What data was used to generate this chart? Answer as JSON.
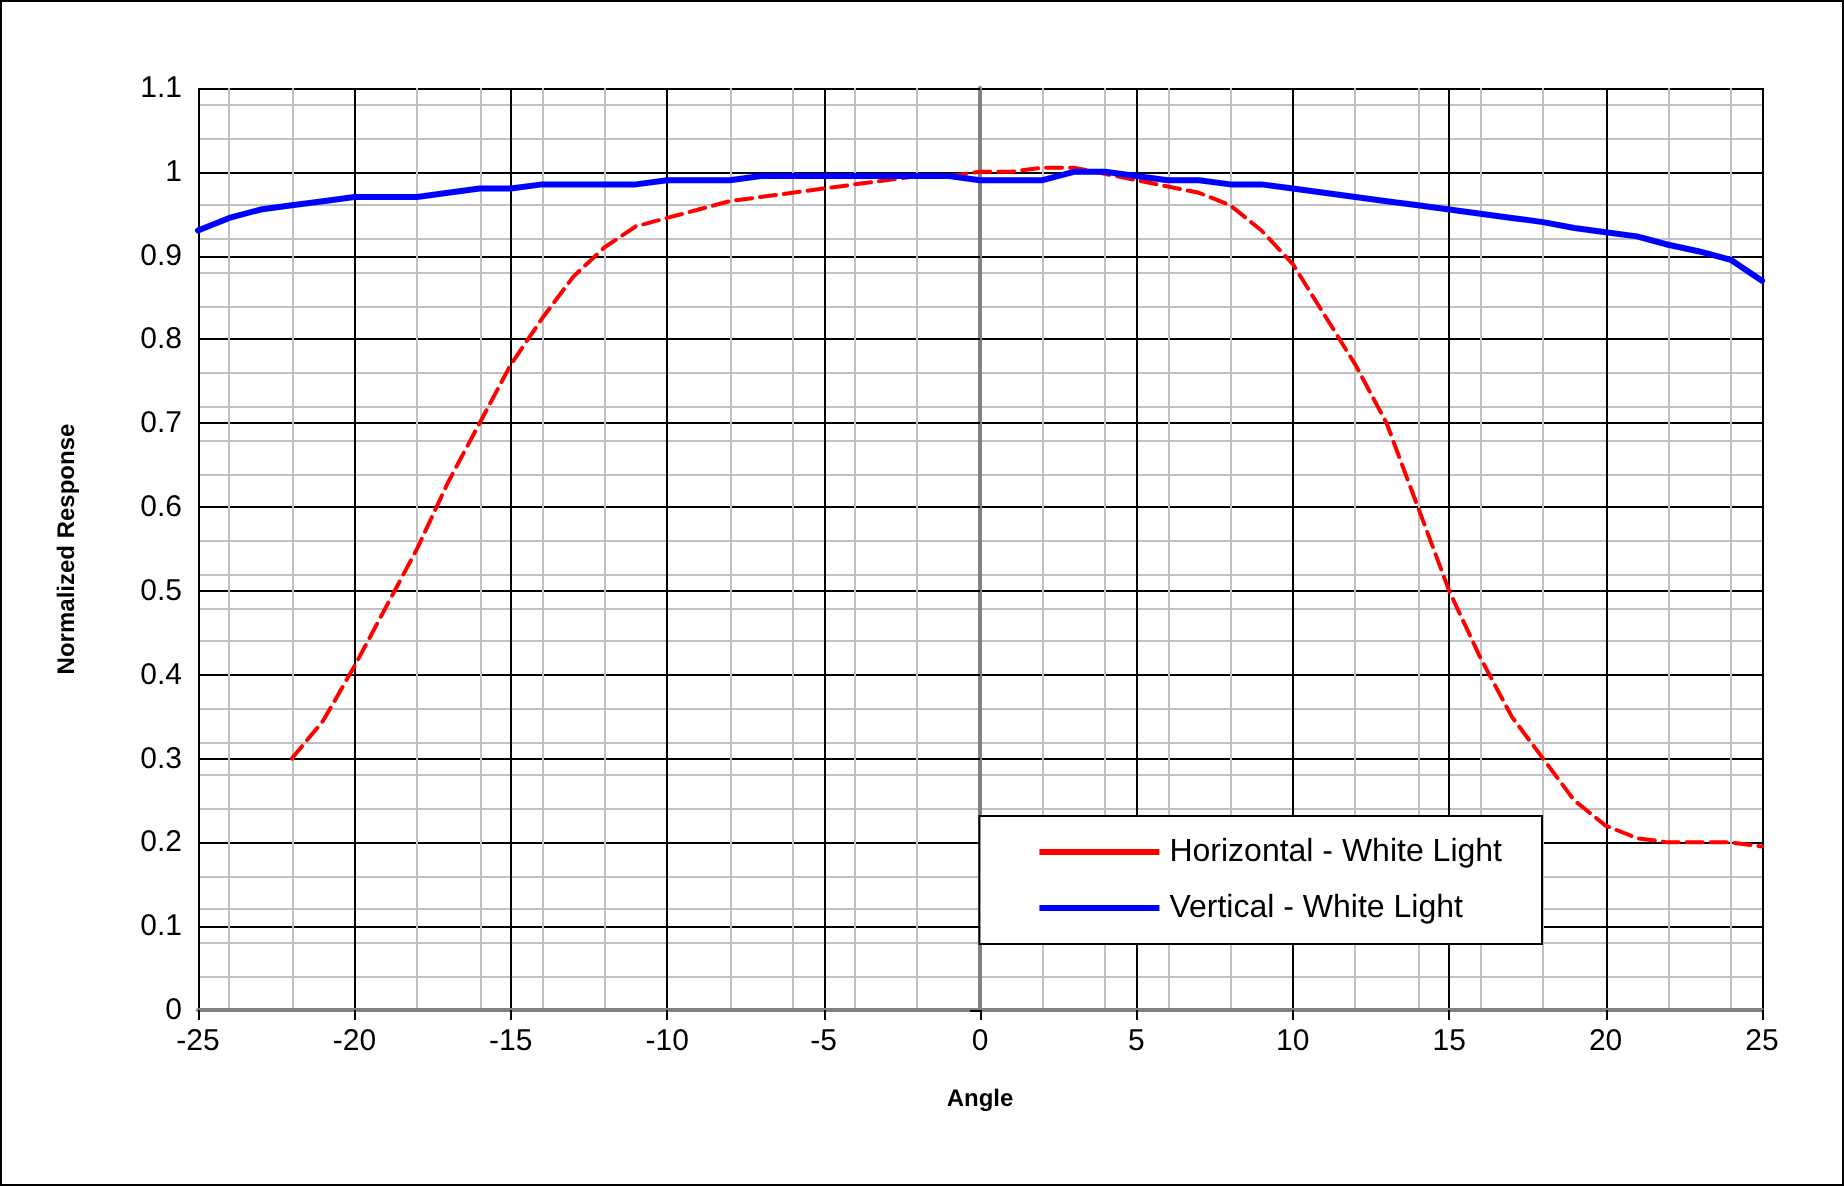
{
  "chart_data": {
    "type": "line",
    "xlabel": "Angle",
    "ylabel": "Normalized Response",
    "xlim": [
      -25,
      25
    ],
    "xticks": [
      -25,
      -20,
      -15,
      -10,
      -5,
      0,
      5,
      10,
      15,
      20,
      25
    ],
    "ylim": [
      0,
      1.1
    ],
    "yticks": [
      0,
      0.1,
      0.2,
      0.3,
      0.4,
      0.5,
      0.6,
      0.7,
      0.8,
      0.9,
      1,
      1.1
    ],
    "grid": true,
    "legend": "bottom right",
    "marker": "none",
    "series": [
      {
        "name": "Horizontal - White Light",
        "color": "#ff0000",
        "line_style": "dashed",
        "x": [
          -22,
          -21,
          -20,
          -19,
          -18,
          -17,
          -16,
          -15,
          -14,
          -13,
          -12,
          -11,
          -10,
          -9,
          -8,
          -7,
          -6,
          -5,
          -4,
          -3,
          -2,
          -1,
          0,
          1,
          2,
          3,
          4,
          5,
          6,
          7,
          8,
          9,
          10,
          11,
          12,
          13,
          14,
          15,
          16,
          17,
          18,
          19,
          20,
          21,
          22,
          23,
          24,
          25
        ],
        "values": [
          0.3,
          0.345,
          0.41,
          0.48,
          0.55,
          0.63,
          0.7,
          0.77,
          0.825,
          0.875,
          0.91,
          0.935,
          0.945,
          0.955,
          0.965,
          0.97,
          0.975,
          0.98,
          0.985,
          0.99,
          0.995,
          0.995,
          1.0,
          1.0,
          1.005,
          1.005,
          null,
          null,
          null,
          0.975,
          0.96,
          0.93,
          0.89,
          0.83,
          0.77,
          0.7,
          0.6,
          0.5,
          0.42,
          0.35,
          0.3,
          0.25,
          0.22,
          0.205,
          0.2,
          0.2,
          0.2,
          0.195
        ]
      },
      {
        "name": "Vertical - White Light",
        "color": "#0000ff",
        "line_style": "solid",
        "x": [
          -25,
          -24,
          -23,
          -22,
          -21,
          -20,
          -19,
          -18,
          -17,
          -16,
          -15,
          -14,
          -13,
          -12,
          -11,
          -10,
          -9,
          -8,
          -7,
          -6,
          -5,
          -4,
          -3,
          -2,
          -1,
          0,
          1,
          2,
          3,
          4,
          5,
          6,
          7,
          8,
          9,
          10,
          11,
          12,
          13,
          14,
          15,
          16,
          17,
          18,
          19,
          20,
          21,
          22,
          23,
          24,
          25
        ],
        "values": [
          0.93,
          0.945,
          0.955,
          0.96,
          0.965,
          0.97,
          0.97,
          0.97,
          0.975,
          0.98,
          0.98,
          0.985,
          0.985,
          0.985,
          0.985,
          0.99,
          0.99,
          0.99,
          0.995,
          0.995,
          0.995,
          0.995,
          0.995,
          0.995,
          0.995,
          0.99,
          0.99,
          0.99,
          1.0,
          1.0,
          0.995,
          0.99,
          0.99,
          0.985,
          0.985,
          0.98,
          0.975,
          0.97,
          0.965,
          0.96,
          0.955,
          0.95,
          0.945,
          0.94,
          0.933,
          0.928,
          0.923,
          0.913,
          0.905,
          0.895,
          0.87
        ]
      }
    ]
  }
}
